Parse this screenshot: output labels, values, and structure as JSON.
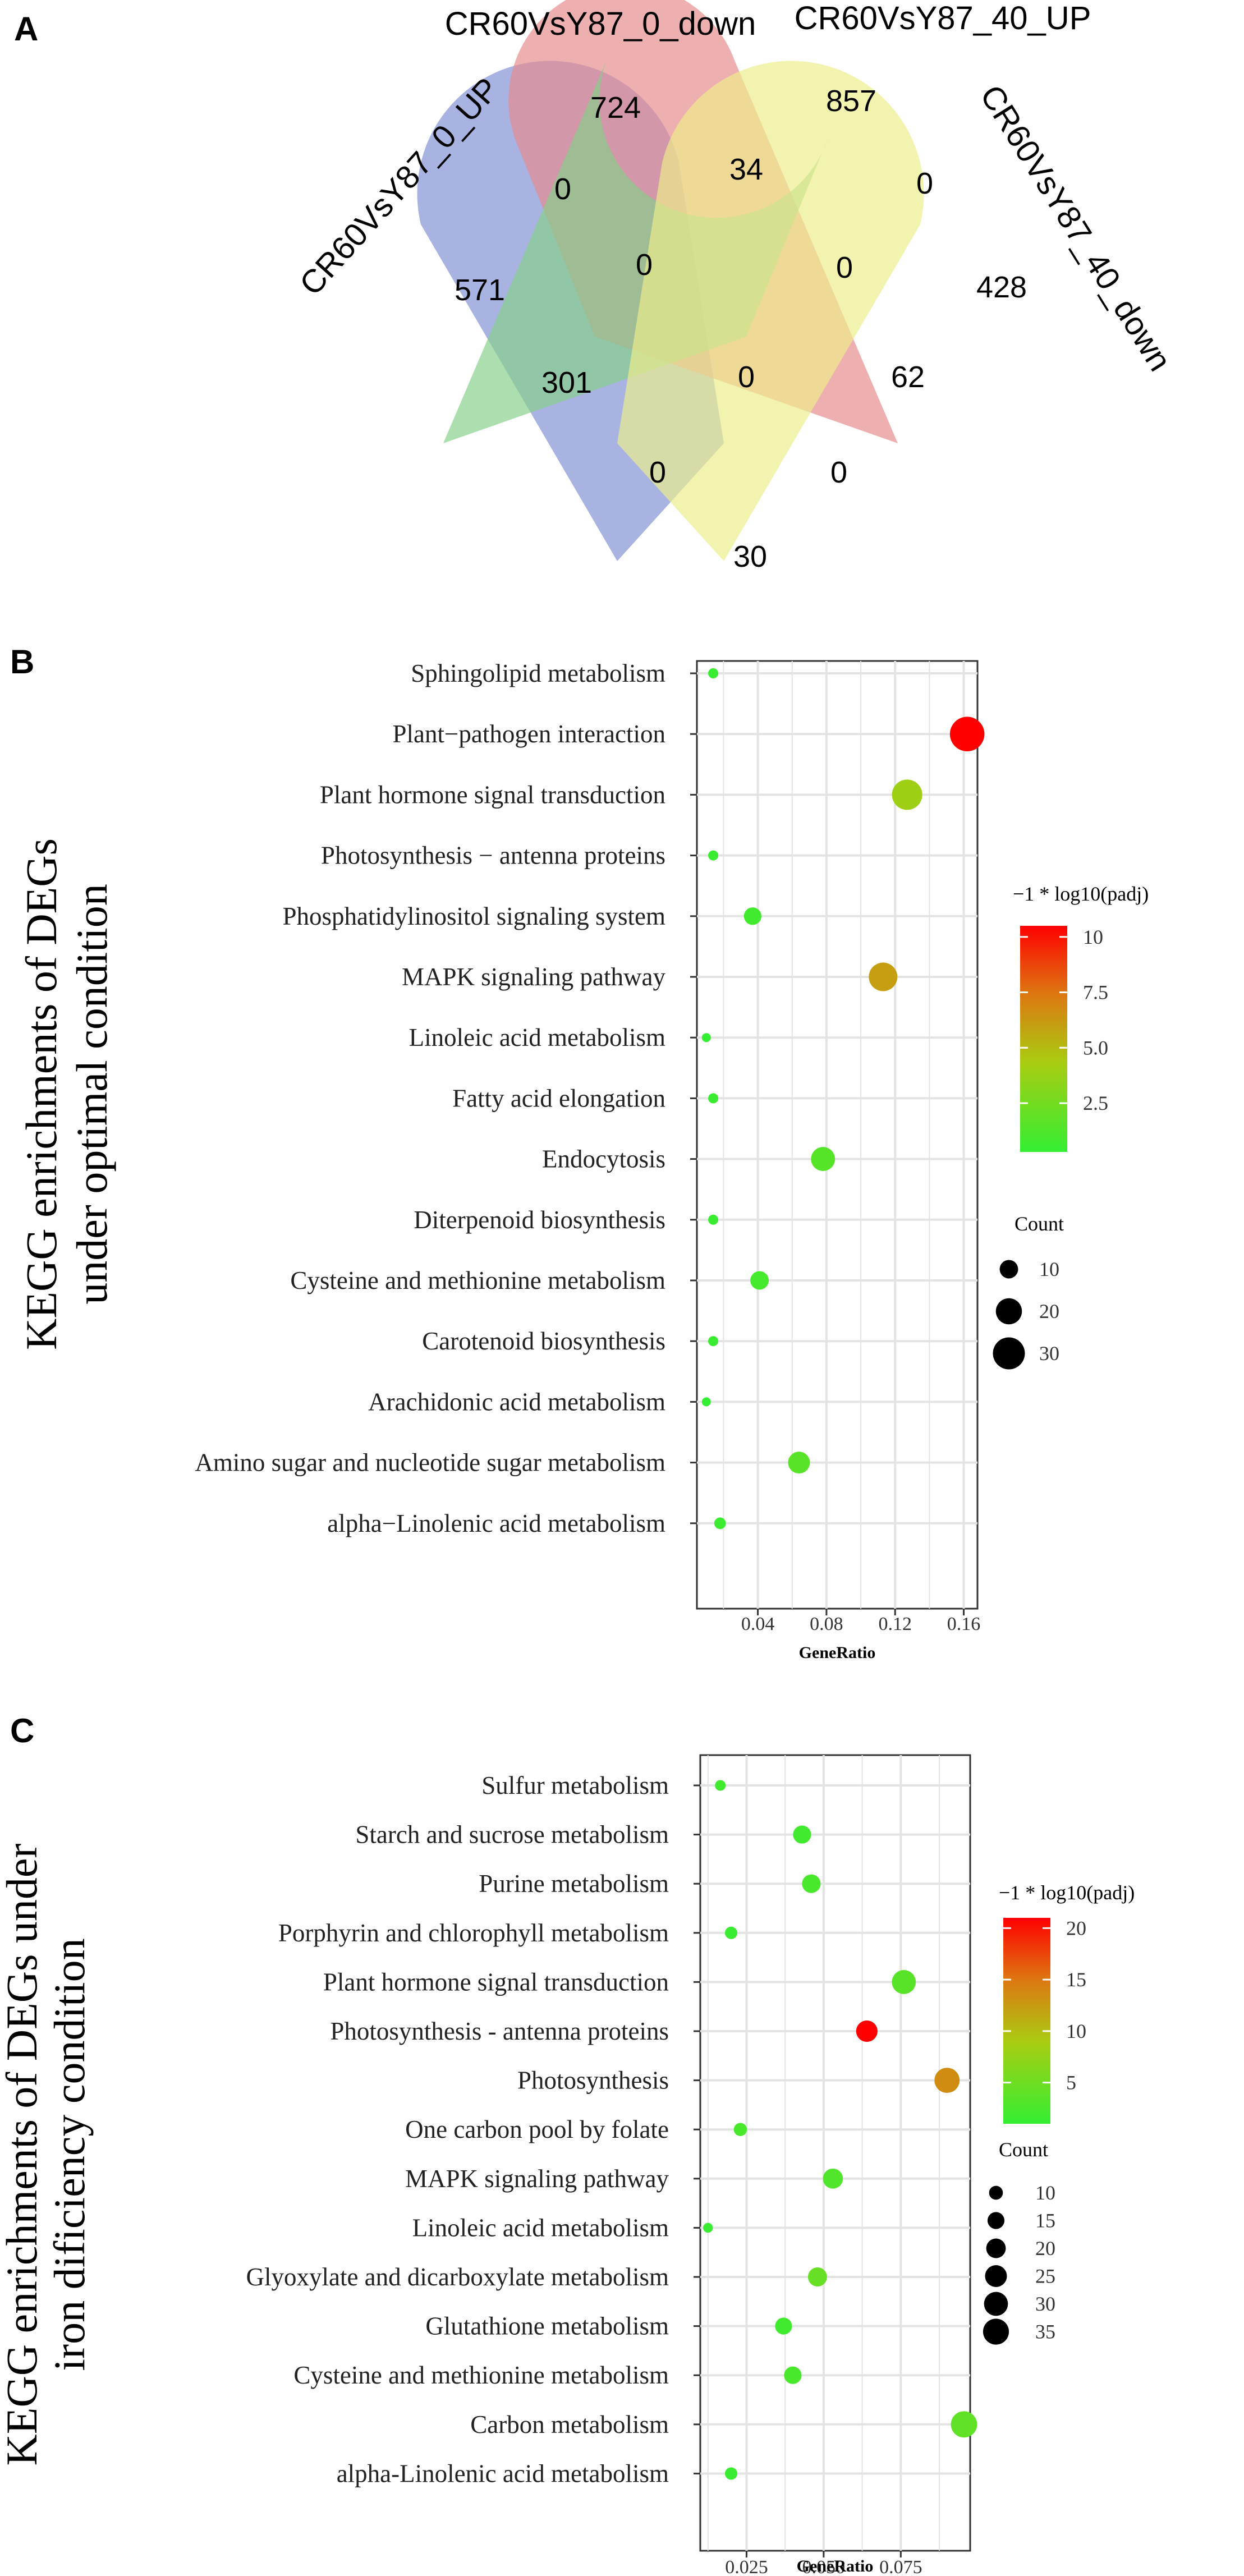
{
  "panel_letters": [
    "A",
    "B",
    "C"
  ],
  "chart_data": [
    {
      "type": "venn",
      "sets": [
        "CR60VsY87_0_UP",
        "CR60VsY87_0_down",
        "CR60VsY87_40_UP",
        "CR60VsY87_40_down"
      ],
      "colors": [
        "#7f8fd4",
        "#e6898c",
        "#86cf8a",
        "#eeee8a"
      ],
      "regions": [
        {
          "sets": [
            "CR60VsY87_0_UP"
          ],
          "count": 571
        },
        {
          "sets": [
            "CR60VsY87_0_down"
          ],
          "count": 724
        },
        {
          "sets": [
            "CR60VsY87_40_UP"
          ],
          "count": 857
        },
        {
          "sets": [
            "CR60VsY87_40_down"
          ],
          "count": 428
        },
        {
          "sets": [
            "CR60VsY87_0_UP",
            "CR60VsY87_0_down"
          ],
          "count": 0
        },
        {
          "sets": [
            "CR60VsY87_0_down",
            "CR60VsY87_40_UP"
          ],
          "count": 34
        },
        {
          "sets": [
            "CR60VsY87_40_UP",
            "CR60VsY87_40_down"
          ],
          "count": 0
        },
        {
          "sets": [
            "CR60VsY87_0_UP",
            "CR60VsY87_0_down",
            "CR60VsY87_40_UP"
          ],
          "count": 0
        },
        {
          "sets": [
            "CR60VsY87_0_down",
            "CR60VsY87_40_UP",
            "CR60VsY87_40_down"
          ],
          "count": 0
        },
        {
          "sets": [
            "CR60VsY87_0_UP",
            "CR60VsY87_40_UP"
          ],
          "count": 301
        },
        {
          "sets": [
            "CR60VsY87_0_UP",
            "CR60VsY87_0_down",
            "CR60VsY87_40_UP",
            "CR60VsY87_40_down"
          ],
          "count": 0
        },
        {
          "sets": [
            "CR60VsY87_0_down",
            "CR60VsY87_40_down"
          ],
          "count": 62
        },
        {
          "sets": [
            "CR60VsY87_0_UP",
            "CR60VsY87_40_UP",
            "CR60VsY87_40_down"
          ],
          "count": 0
        },
        {
          "sets": [
            "CR60VsY87_0_UP",
            "CR60VsY87_0_down",
            "CR60VsY87_40_down"
          ],
          "count": 0
        },
        {
          "sets": [
            "CR60VsY87_0_UP",
            "CR60VsY87_40_down"
          ],
          "count": 30
        }
      ]
    },
    {
      "type": "scatter",
      "ylabel_lines": [
        "KEGG enrichments of DEGs",
        "under optimal condition"
      ],
      "xlabel": "GeneRatio",
      "xticks": [
        0.04,
        0.08,
        0.12,
        0.16
      ],
      "xtick_labels": [
        "0.04",
        "0.08",
        "0.12",
        "0.16"
      ],
      "xlim": [
        0.0045,
        0.168
      ],
      "categories": [
        "Sphingolipid metabolism",
        "Plant−pathogen interaction",
        "Plant hormone signal transduction",
        "Photosynthesis − antenna proteins",
        "Phosphatidylinositol signaling system",
        "MAPK signaling pathway",
        "Linoleic acid metabolism",
        "Fatty acid elongation",
        "Endocytosis",
        "Diterpenoid biosynthesis",
        "Cysteine and methionine metabolism",
        "Carotenoid biosynthesis",
        "Arachidonic acid metabolism",
        "Amino sugar and nucleotide sugar metabolism",
        "alpha−Linolenic acid metabolism"
      ],
      "x": [
        0.014,
        0.162,
        0.127,
        0.014,
        0.037,
        0.113,
        0.01,
        0.014,
        0.078,
        0.014,
        0.041,
        0.014,
        0.01,
        0.064,
        0.018
      ],
      "color_values": [
        0.5,
        10.5,
        4.0,
        0.5,
        0.8,
        6.0,
        0.3,
        0.5,
        1.5,
        0.5,
        0.9,
        0.5,
        0.3,
        1.6,
        0.6
      ],
      "size_values": [
        3,
        35,
        27,
        3,
        9,
        24,
        2,
        3,
        17,
        3,
        10,
        3,
        2,
        14,
        4
      ],
      "color_legend": {
        "title": "−1 * log10(padj)",
        "range": [
          0.3,
          10.5
        ],
        "ticks": [
          2.5,
          5.0,
          7.5,
          10
        ],
        "tick_labels": [
          "2.5",
          "5.0",
          "7.5",
          "10"
        ]
      },
      "size_legend": {
        "title": "Count",
        "values": [
          10,
          20,
          30
        ],
        "labels": [
          "10",
          "20",
          "30"
        ]
      },
      "grid": true
    },
    {
      "type": "scatter",
      "ylabel_lines": [
        "KEGG enrichments of DEGs under",
        "iron dificiency condition"
      ],
      "xlabel": "GeneRatio",
      "xticks": [
        0.025,
        0.05,
        0.075
      ],
      "xtick_labels": [
        "0.025",
        "0.050",
        "0.075"
      ],
      "xlim": [
        0.01,
        0.0975
      ],
      "categories": [
        "Sulfur metabolism",
        "Starch and sucrose metabolism",
        "Purine metabolism",
        "Porphyrin and chlorophyll metabolism",
        "Plant hormone signal transduction",
        "Photosynthesis - antenna proteins",
        "Photosynthesis",
        "One carbon pool by folate",
        "MAPK signaling pathway",
        "Linoleic acid metabolism",
        "Glyoxylate and dicarboxylate metabolism",
        "Glutathione metabolism",
        "Cysteine and methionine metabolism",
        "Carbon metabolism",
        "alpha-Linolenic acid metabolism"
      ],
      "x": [
        0.0165,
        0.043,
        0.046,
        0.02,
        0.076,
        0.064,
        0.09,
        0.023,
        0.053,
        0.0125,
        0.048,
        0.037,
        0.04,
        0.0955,
        0.02
      ],
      "color_values": [
        2.0,
        2.0,
        2.5,
        1.5,
        3.5,
        21.0,
        13.5,
        2.5,
        3.0,
        1.5,
        4.5,
        2.0,
        2.5,
        4.0,
        1.5
      ],
      "size_values": [
        6,
        17,
        18,
        8,
        30,
        24,
        33,
        9,
        21,
        5,
        19,
        15,
        16,
        36,
        8
      ],
      "color_legend": {
        "title": "−1 * log10(padj)",
        "range": [
          1,
          21
        ],
        "ticks": [
          5,
          10,
          15,
          20
        ],
        "tick_labels": [
          "5",
          "10",
          "15",
          "20"
        ]
      },
      "size_legend": {
        "title": "Count",
        "values": [
          10,
          15,
          20,
          25,
          30,
          35
        ],
        "labels": [
          "10",
          "15",
          "20",
          "25",
          "30",
          "35"
        ]
      },
      "grid": true
    }
  ]
}
